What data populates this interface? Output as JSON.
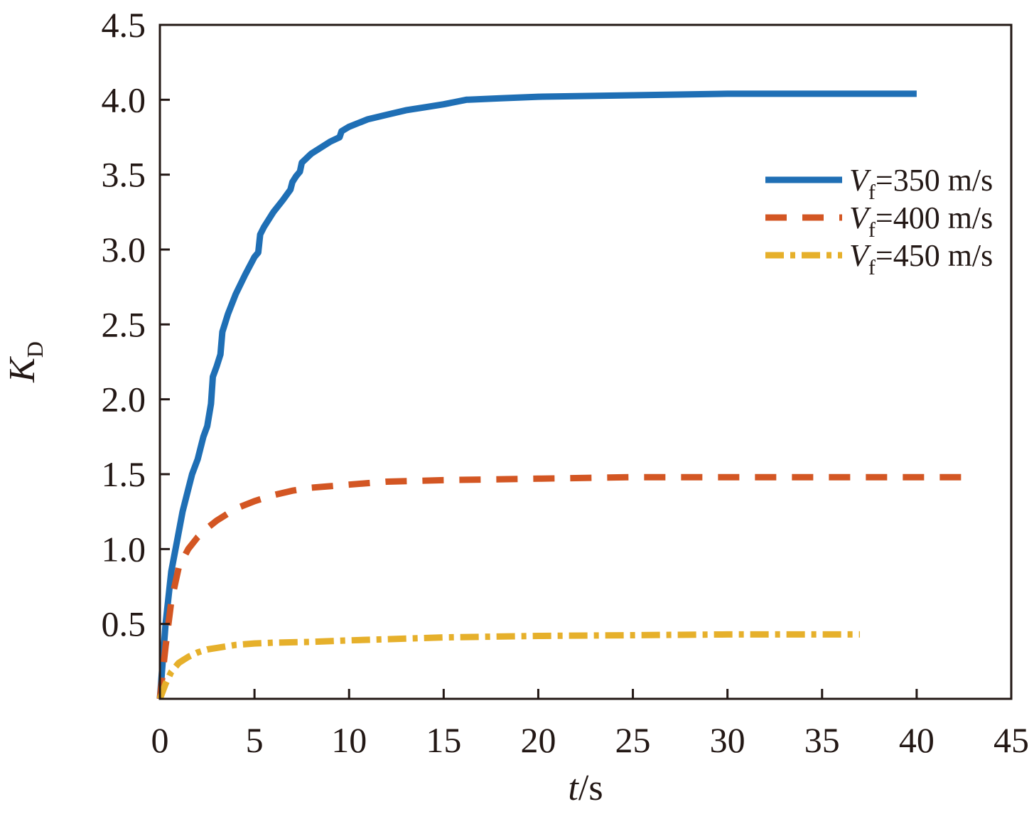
{
  "chart_data": {
    "type": "line",
    "title": "",
    "xlabel": {
      "var": "t",
      "unit": "/s"
    },
    "ylabel": {
      "var": "K",
      "sub": "D"
    },
    "xlim": [
      0,
      45
    ],
    "ylim": [
      0,
      4.5
    ],
    "x_ticks": [
      "0",
      "5",
      "10",
      "15",
      "20",
      "25",
      "30",
      "35",
      "40",
      "45"
    ],
    "y_ticks": [
      "0.5",
      "1.0",
      "1.5",
      "2.0",
      "2.5",
      "3.0",
      "3.5",
      "4.0",
      "4.5"
    ],
    "x_tick_values": [
      0,
      5,
      10,
      15,
      20,
      25,
      30,
      35,
      40,
      45
    ],
    "y_tick_values": [
      0.5,
      1.0,
      1.5,
      2.0,
      2.5,
      3.0,
      3.5,
      4.0,
      4.5
    ],
    "grid": false,
    "legend_position": "right",
    "series": [
      {
        "name": "Vf=350 m/s",
        "legend": {
          "var": "V",
          "sub": "f",
          "rest": "=350 m/s"
        },
        "color": "#1f6fb5",
        "style": "solid",
        "x": [
          0,
          0.3,
          0.6,
          0.9,
          1.2,
          1.5,
          1.7,
          2.0,
          2.3,
          2.5,
          2.7,
          2.8,
          3.0,
          3.2,
          3.3,
          3.6,
          4.0,
          4.5,
          5.0,
          5.2,
          5.3,
          5.5,
          6.0,
          6.5,
          6.9,
          7.0,
          7.2,
          7.4,
          7.5,
          8.0,
          9.0,
          9.5,
          9.6,
          10.0,
          11.0,
          12.0,
          13.0,
          14.0,
          15.0,
          16.2,
          16.3,
          18.0,
          20.0,
          25.0,
          30.0,
          35.0,
          40.0
        ],
        "y": [
          0,
          0.5,
          0.85,
          1.05,
          1.25,
          1.4,
          1.5,
          1.6,
          1.75,
          1.82,
          1.97,
          2.15,
          2.22,
          2.3,
          2.45,
          2.57,
          2.7,
          2.83,
          2.95,
          2.98,
          3.1,
          3.15,
          3.25,
          3.33,
          3.4,
          3.45,
          3.49,
          3.52,
          3.58,
          3.64,
          3.72,
          3.75,
          3.79,
          3.82,
          3.87,
          3.9,
          3.93,
          3.95,
          3.97,
          4.0,
          4.0,
          4.01,
          4.02,
          4.03,
          4.04,
          4.04,
          4.04
        ]
      },
      {
        "name": "Vf=400 m/s",
        "legend": {
          "var": "V",
          "sub": "f",
          "rest": "=400 m/s"
        },
        "color": "#d35623",
        "style": "dashed",
        "x": [
          0,
          0.3,
          0.6,
          1.0,
          1.5,
          2.0,
          2.5,
          3.0,
          3.5,
          4.0,
          5.0,
          6.0,
          7.0,
          8.0,
          9.0,
          10.0,
          12.0,
          15.0,
          20.0,
          25.0,
          30.0,
          35.0,
          40.0,
          43.0
        ],
        "y": [
          0,
          0.35,
          0.65,
          0.88,
          1.0,
          1.08,
          1.14,
          1.19,
          1.23,
          1.27,
          1.32,
          1.36,
          1.39,
          1.41,
          1.42,
          1.43,
          1.45,
          1.46,
          1.47,
          1.48,
          1.48,
          1.48,
          1.48,
          1.48
        ]
      },
      {
        "name": "Vf=450 m/s",
        "legend": {
          "var": "V",
          "sub": "f",
          "rest": "=450 m/s"
        },
        "color": "#e6b02b",
        "style": "dashdot",
        "x": [
          0,
          0.3,
          0.6,
          1.0,
          1.5,
          2.0,
          2.5,
          3.0,
          4.0,
          5.0,
          6.0,
          8.0,
          10.0,
          15.0,
          20.0,
          25.0,
          30.0,
          37.0
        ],
        "y": [
          0,
          0.1,
          0.18,
          0.24,
          0.28,
          0.31,
          0.33,
          0.34,
          0.36,
          0.37,
          0.375,
          0.38,
          0.39,
          0.41,
          0.42,
          0.425,
          0.43,
          0.43
        ]
      }
    ]
  }
}
